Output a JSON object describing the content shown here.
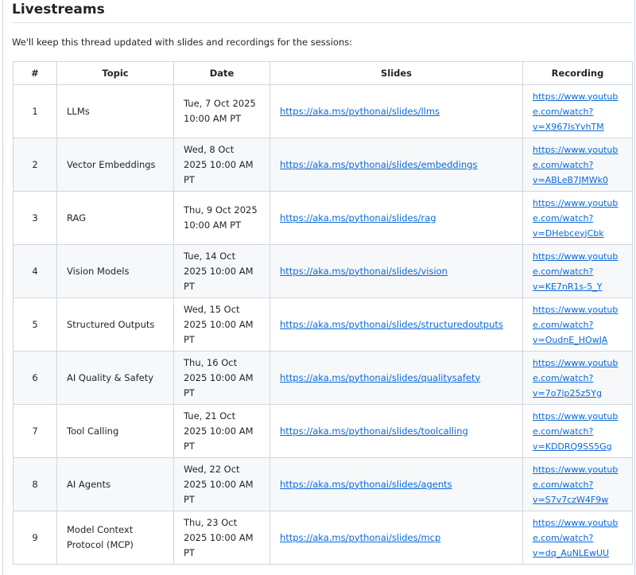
{
  "title": "Livestreams",
  "intro": "We'll keep this thread updated with slides and recordings for the sessions:",
  "table": {
    "headers": [
      "#",
      "Topic",
      "Date",
      "Slides",
      "Recording"
    ],
    "rows": [
      {
        "num": "1",
        "topic": "LLMs",
        "date": "Tue, 7 Oct 2025 10:00 AM PT",
        "slides": "https://aka.ms/pythonai/slides/llms",
        "recording": "https://www.youtube.com/watch?v=X967IsYvhTM"
      },
      {
        "num": "2",
        "topic": "Vector Embeddings",
        "date": "Wed, 8 Oct 2025 10:00 AM PT",
        "slides": "https://aka.ms/pythonai/slides/embeddings",
        "recording": "https://www.youtube.com/watch?v=ABLeB7JMWk0"
      },
      {
        "num": "3",
        "topic": "RAG",
        "date": "Thu, 9 Oct 2025 10:00 AM PT",
        "slides": "https://aka.ms/pythonai/slides/rag",
        "recording": "https://www.youtube.com/watch?v=DHebceyjCbk"
      },
      {
        "num": "4",
        "topic": "Vision Models",
        "date": "Tue, 14 Oct 2025 10:00 AM PT",
        "slides": "https://aka.ms/pythonai/slides/vision",
        "recording": "https://www.youtube.com/watch?v=KE7nR1s-5_Y"
      },
      {
        "num": "5",
        "topic": "Structured Outputs",
        "date": "Wed, 15 Oct 2025 10:00 AM PT",
        "slides": "https://aka.ms/pythonai/slides/structuredoutputs",
        "recording": "https://www.youtube.com/watch?v=OudnE_HOwJA"
      },
      {
        "num": "6",
        "topic": "AI Quality & Safety",
        "date": "Thu, 16 Oct 2025 10:00 AM PT",
        "slides": "https://aka.ms/pythonai/slides/qualitysafety",
        "recording": "https://www.youtube.com/watch?v=7o7ip25z5Yg"
      },
      {
        "num": "7",
        "topic": "Tool Calling",
        "date": "Tue, 21 Oct 2025 10:00 AM PT",
        "slides": "https://aka.ms/pythonai/slides/toolcalling",
        "recording": "https://www.youtube.com/watch?v=KDDRQ9SS5Gg"
      },
      {
        "num": "8",
        "topic": "AI Agents",
        "date": "Wed, 22 Oct 2025 10:00 AM PT",
        "slides": "https://aka.ms/pythonai/slides/agents",
        "recording": "https://www.youtube.com/watch?v=S7v7czW4F9w"
      },
      {
        "num": "9",
        "topic": "Model Context Protocol (MCP)",
        "date": "Thu, 23 Oct 2025 10:00 AM PT",
        "slides": "https://aka.ms/pythonai/slides/mcp",
        "recording": "https://www.youtube.com/watch?v=dq_AuNLEwUU"
      }
    ]
  },
  "colors": {
    "link": "#0969da",
    "border": "#d0d7de",
    "stripe": "#f6f8fa"
  }
}
